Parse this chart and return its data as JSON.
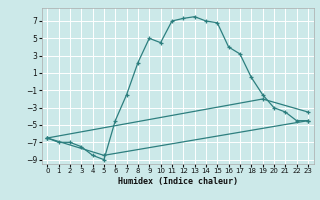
{
  "xlabel": "Humidex (Indice chaleur)",
  "ylabel": "",
  "bg_color": "#cce9e9",
  "grid_color": "#ffffff",
  "line_color": "#2d7f7f",
  "xlim": [
    -0.5,
    23.5
  ],
  "ylim": [
    -9.5,
    8.5
  ],
  "xticks": [
    0,
    1,
    2,
    3,
    4,
    5,
    6,
    7,
    8,
    9,
    10,
    11,
    12,
    13,
    14,
    15,
    16,
    17,
    18,
    19,
    20,
    21,
    22,
    23
  ],
  "yticks": [
    -9,
    -7,
    -5,
    -3,
    -1,
    1,
    3,
    5,
    7
  ],
  "series": [
    [
      0,
      -6.5
    ],
    [
      1,
      -7.0
    ],
    [
      2,
      -7.0
    ],
    [
      3,
      -7.5
    ],
    [
      4,
      -8.5
    ],
    [
      5,
      -9.0
    ],
    [
      6,
      -4.5
    ],
    [
      7,
      -1.5
    ],
    [
      8,
      2.2
    ],
    [
      9,
      5.0
    ],
    [
      10,
      4.5
    ],
    [
      11,
      7.0
    ],
    [
      12,
      7.3
    ],
    [
      13,
      7.5
    ],
    [
      14,
      7.0
    ],
    [
      15,
      6.8
    ],
    [
      16,
      4.0
    ],
    [
      17,
      3.2
    ],
    [
      18,
      0.5
    ],
    [
      19,
      -1.5
    ],
    [
      20,
      -3.0
    ],
    [
      21,
      -3.5
    ],
    [
      22,
      -4.5
    ],
    [
      23,
      -4.5
    ]
  ],
  "line2": [
    [
      0,
      -6.5
    ],
    [
      5,
      -8.5
    ],
    [
      23,
      -4.5
    ]
  ],
  "line3": [
    [
      0,
      -6.5
    ],
    [
      19,
      -2.0
    ],
    [
      23,
      -3.5
    ]
  ]
}
